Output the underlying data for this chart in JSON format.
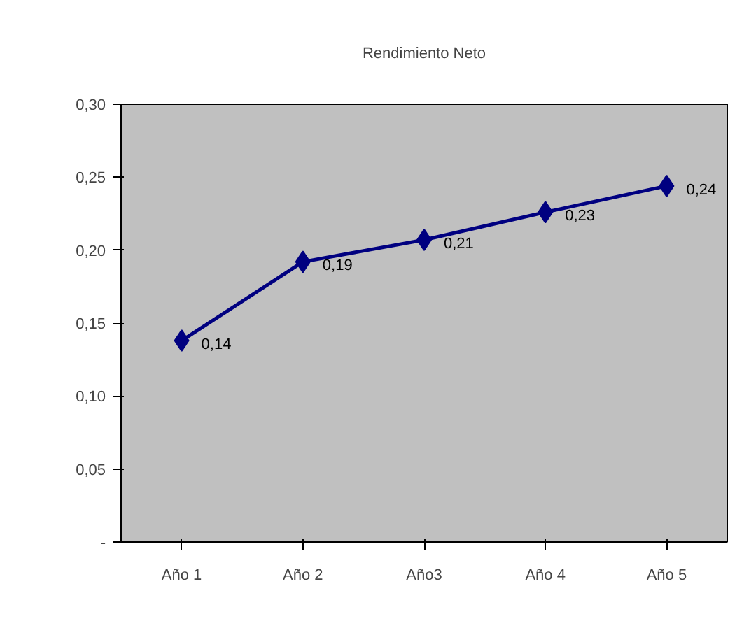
{
  "chart_data": {
    "type": "line",
    "title": "Rendimiento Neto",
    "categories": [
      "Año 1",
      "Año 2",
      "Año3",
      "Año 4",
      "Año 5"
    ],
    "series": [
      {
        "color": "#000080",
        "values": [
          0.138,
          0.192,
          0.207,
          0.226,
          0.244
        ],
        "value_labels": [
          "0,14",
          "0,19",
          "0,21",
          "0,23",
          "0,24"
        ]
      }
    ],
    "ylim": [
      0,
      0.3
    ],
    "yticks": [
      {
        "value": 0,
        "label": "-"
      },
      {
        "value": 0.05,
        "label": "0,05"
      },
      {
        "value": 0.1,
        "label": "0,10"
      },
      {
        "value": 0.15,
        "label": "0,15"
      },
      {
        "value": 0.2,
        "label": "0,20"
      },
      {
        "value": 0.25,
        "label": "0,25"
      },
      {
        "value": 0.3,
        "label": "0,30"
      }
    ],
    "marker": "diamond",
    "line_style": "solid"
  }
}
